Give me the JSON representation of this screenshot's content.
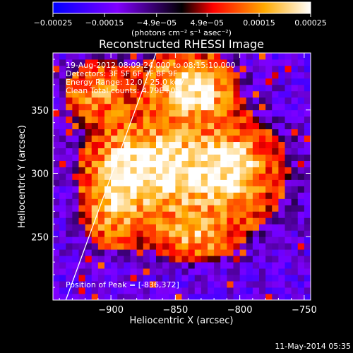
{
  "chart_data": {
    "type": "heatmap",
    "title": "Reconstructed RHESSI Image",
    "xlabel": "Heliocentric X (arcsec)",
    "ylabel": "Heliocentric Y (arcsec)",
    "xlim": [
      -945,
      -745
    ],
    "ylim": [
      200,
      395
    ],
    "xticks": [
      -900,
      -850,
      -800,
      -750
    ],
    "xtick_labels": [
      "−900",
      "−850",
      "−800",
      "−750"
    ],
    "yticks": [
      250,
      300,
      350
    ],
    "ytick_labels": [
      "250",
      "300",
      "350"
    ],
    "colorbar": {
      "range": [
        -0.00025,
        0.00025
      ],
      "ticks": [
        -0.00025,
        -0.00015,
        -4.9e-05,
        4.9e-05,
        0.00015,
        0.00025
      ],
      "tick_labels": [
        "−0.00025",
        "−0.00015",
        "−4.9e−05",
        "4.9e−05",
        "0.00015",
        "0.00025"
      ],
      "unit_label": "(photons cm⁻² s⁻¹ asec⁻²)",
      "colormap": [
        "#0000ff",
        "#8000ff",
        "#000000",
        "#ff0000",
        "#ffaa00",
        "#ffffff"
      ]
    },
    "annotations": [
      "19-Aug-2012 08:09:24.000 to 08:15:10.000",
      "Detectors: 3F 5F 6F 7F 8F 9F",
      "Energy Range: 12.0 - 25.0 keV",
      "Clean     Total counts: 4.79E+05"
    ],
    "peak_label": "Position of Peak = [-836,372]",
    "peak": [
      -836,
      372
    ],
    "limb_line": {
      "x": [
        -935,
        -865
      ],
      "y": [
        200,
        395
      ]
    },
    "emission_sources": [
      {
        "x": -835,
        "y": 300,
        "sx": 45,
        "sy": 35,
        "amp": 0.8
      },
      {
        "x": -810,
        "y": 305,
        "sx": 14,
        "sy": 12,
        "amp": 1.0
      },
      {
        "x": -880,
        "y": 305,
        "sx": 22,
        "sy": 18,
        "amp": 0.85
      },
      {
        "x": -840,
        "y": 375,
        "sx": 22,
        "sy": 15,
        "amp": 0.75
      },
      {
        "x": -910,
        "y": 365,
        "sx": 18,
        "sy": 18,
        "amp": 0.55
      },
      {
        "x": -835,
        "y": 360,
        "sx": 14,
        "sy": 10,
        "amp": 0.6
      },
      {
        "x": -900,
        "y": 270,
        "sx": 15,
        "sy": 20,
        "amp": 0.55
      },
      {
        "x": -835,
        "y": 250,
        "sx": 18,
        "sy": 12,
        "amp": 0.5
      }
    ]
  },
  "footer": {
    "timestamp": "11-May-2014 05:35"
  }
}
